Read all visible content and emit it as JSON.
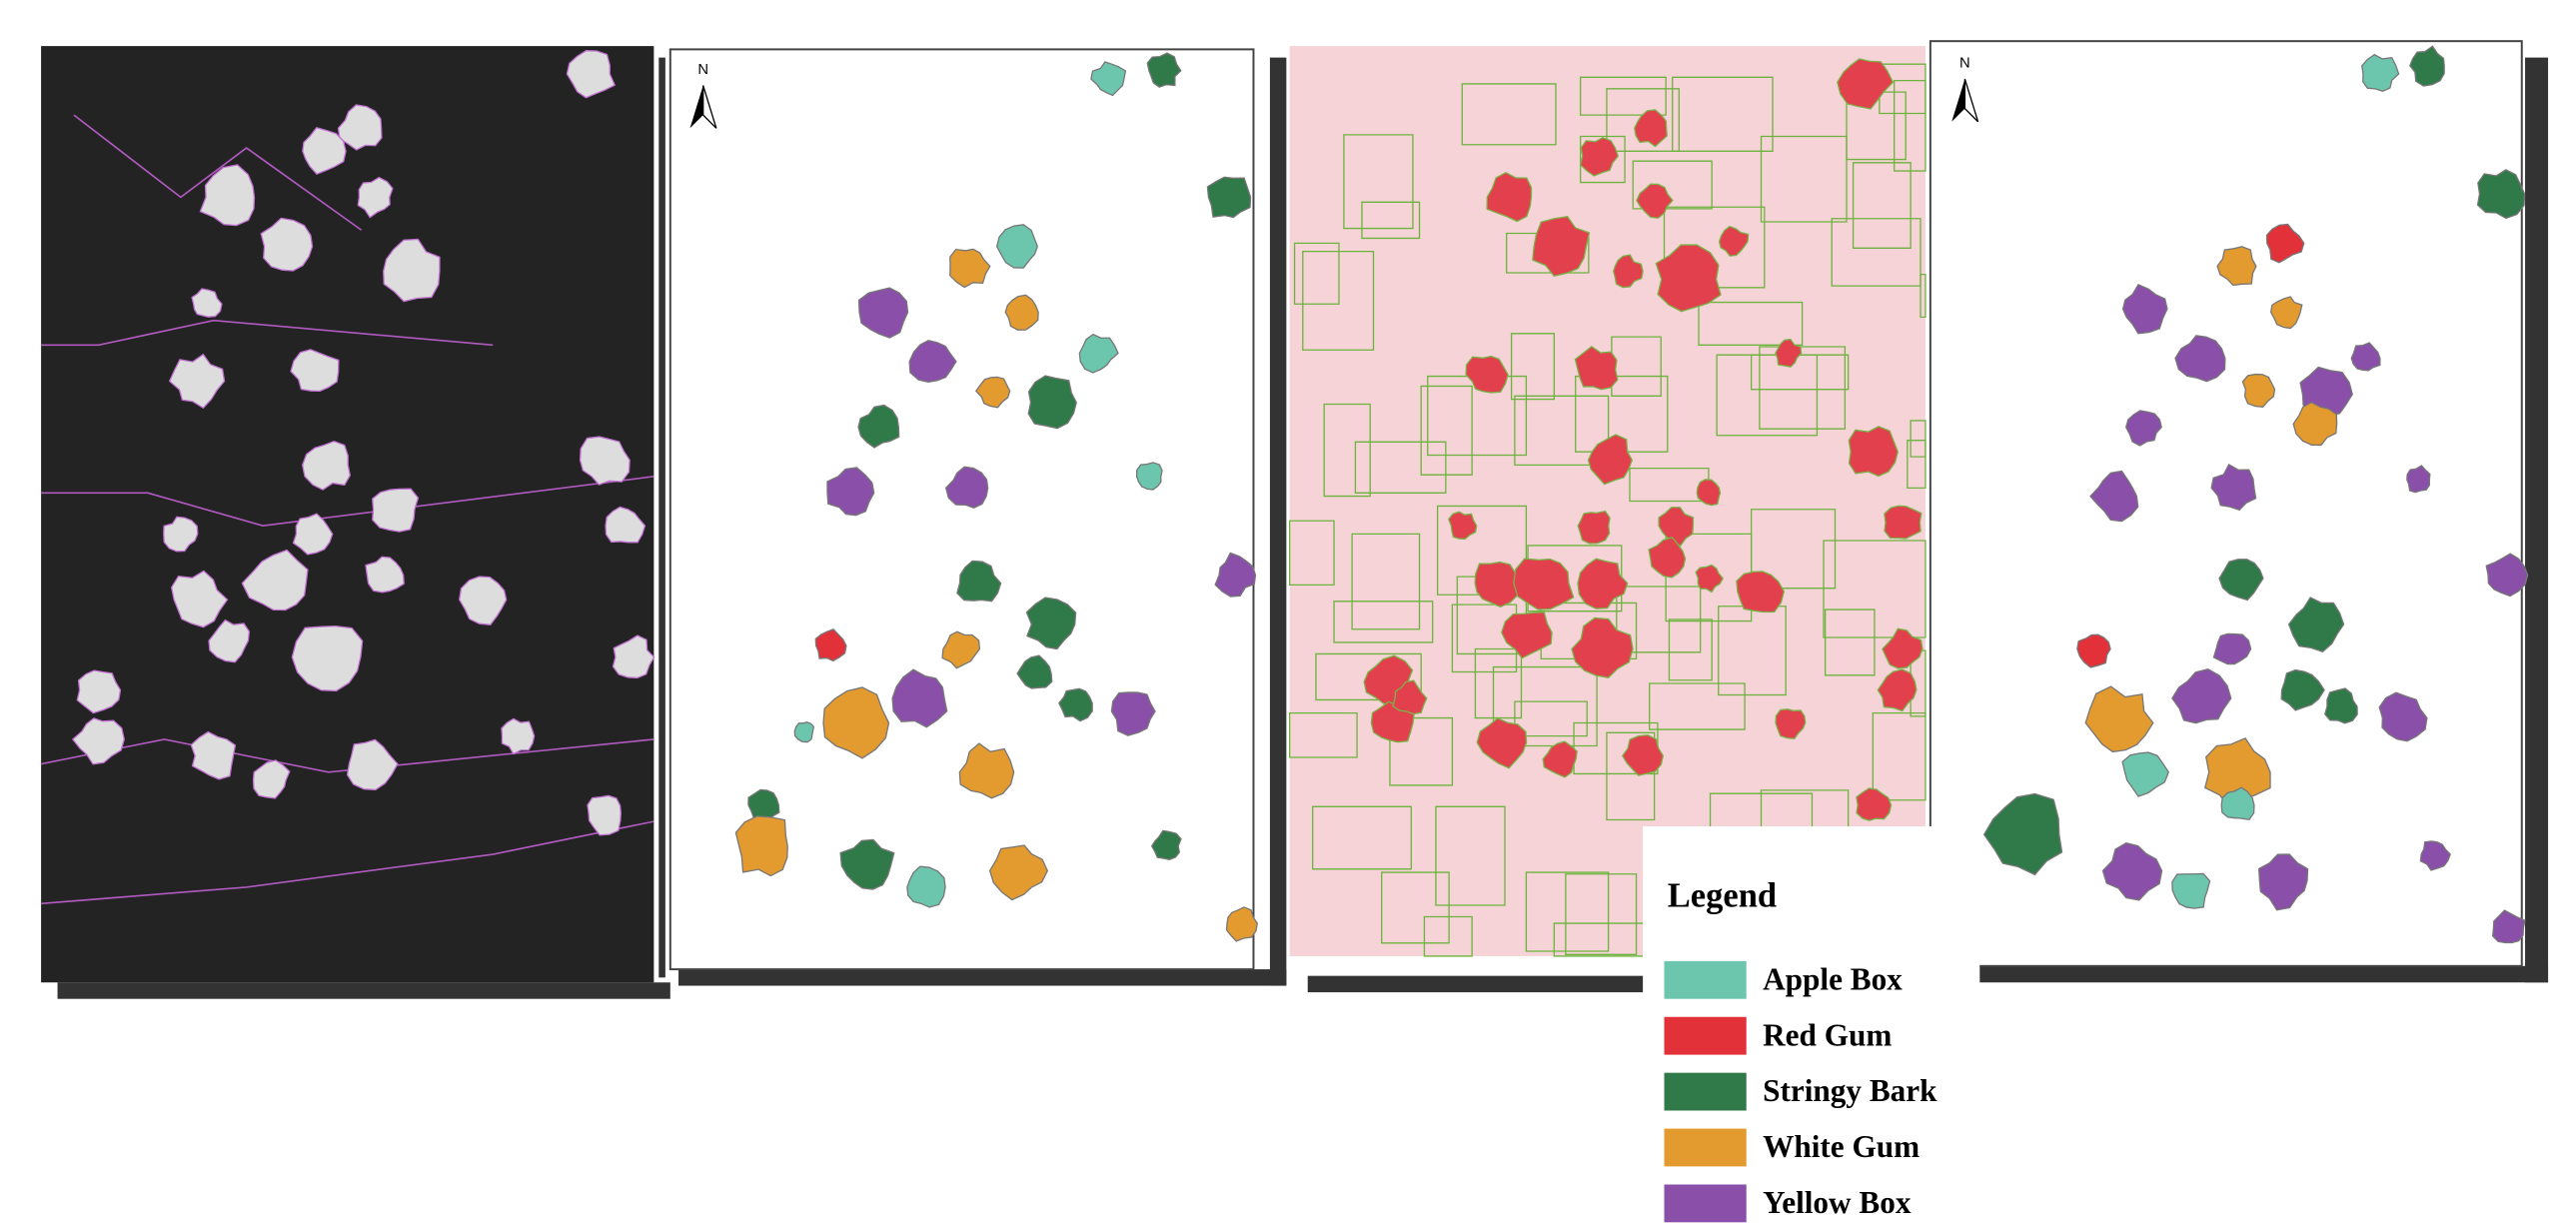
{
  "legend": {
    "title": "Legend",
    "items": [
      {
        "label": "Apple Box",
        "color": "#6cc6ae"
      },
      {
        "label": "Red Gum",
        "color": "#e3313a"
      },
      {
        "label": "Stringy Bark",
        "color": "#2f7a48"
      },
      {
        "label": "White Gum",
        "color": "#e39a2e"
      },
      {
        "label": "Yellow Box",
        "color": "#8a4fa8"
      }
    ]
  },
  "north_arrows": [
    "N",
    "N"
  ]
}
